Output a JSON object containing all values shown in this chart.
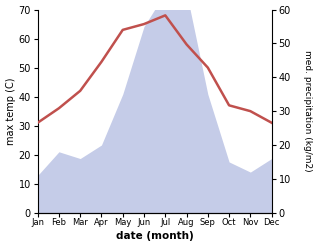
{
  "months": [
    "Jan",
    "Feb",
    "Mar",
    "Apr",
    "May",
    "Jun",
    "Jul",
    "Aug",
    "Sep",
    "Oct",
    "Nov",
    "Dec"
  ],
  "temperature": [
    31,
    36,
    42,
    52,
    63,
    65,
    68,
    58,
    50,
    37,
    35,
    31
  ],
  "precipitation": [
    11,
    18,
    16,
    20,
    35,
    55,
    65,
    65,
    35,
    15,
    12,
    16
  ],
  "temp_color": "#c0504d",
  "precip_fill_color": "#c5cce8",
  "precip_edge_color": "#aab8d8",
  "temp_ylim": [
    0,
    70
  ],
  "precip_ylim": [
    0,
    60
  ],
  "temp_yticks": [
    0,
    10,
    20,
    30,
    40,
    50,
    60,
    70
  ],
  "precip_yticks": [
    0,
    10,
    20,
    30,
    40,
    50,
    60
  ],
  "xlabel": "date (month)",
  "ylabel_left": "max temp (C)",
  "ylabel_right": "med. precipitation (kg/m2)",
  "bg_color": "#ffffff",
  "temp_linewidth": 1.8
}
